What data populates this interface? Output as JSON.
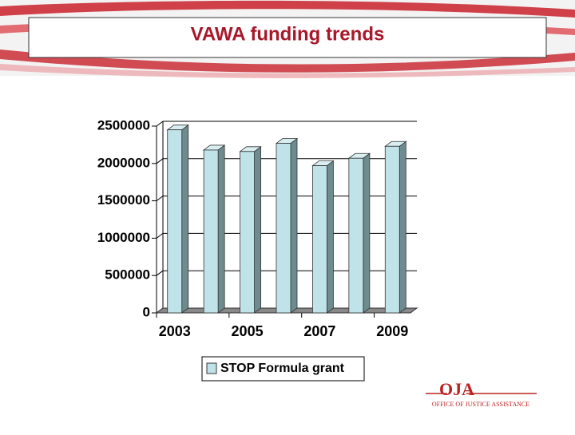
{
  "chart_data": {
    "type": "bar",
    "title": "VAWA funding trends",
    "categories": [
      "2003",
      null,
      "2005",
      null,
      "2007",
      null,
      "2009"
    ],
    "series": [
      {
        "name": "STOP Formula grant",
        "color": "#bfe3e8",
        "values": [
          2450000,
          2180000,
          2160000,
          2270000,
          1970000,
          2070000,
          2230000
        ]
      }
    ],
    "ylim": [
      0,
      2500000
    ],
    "yticks": [
      0,
      500000,
      1000000,
      1500000,
      2000000,
      2500000
    ],
    "grid": true,
    "legend": "bottom"
  },
  "logo": {
    "mark": "OJA",
    "text": "OFFICE OF JUSTICE ASSISTANCE"
  }
}
